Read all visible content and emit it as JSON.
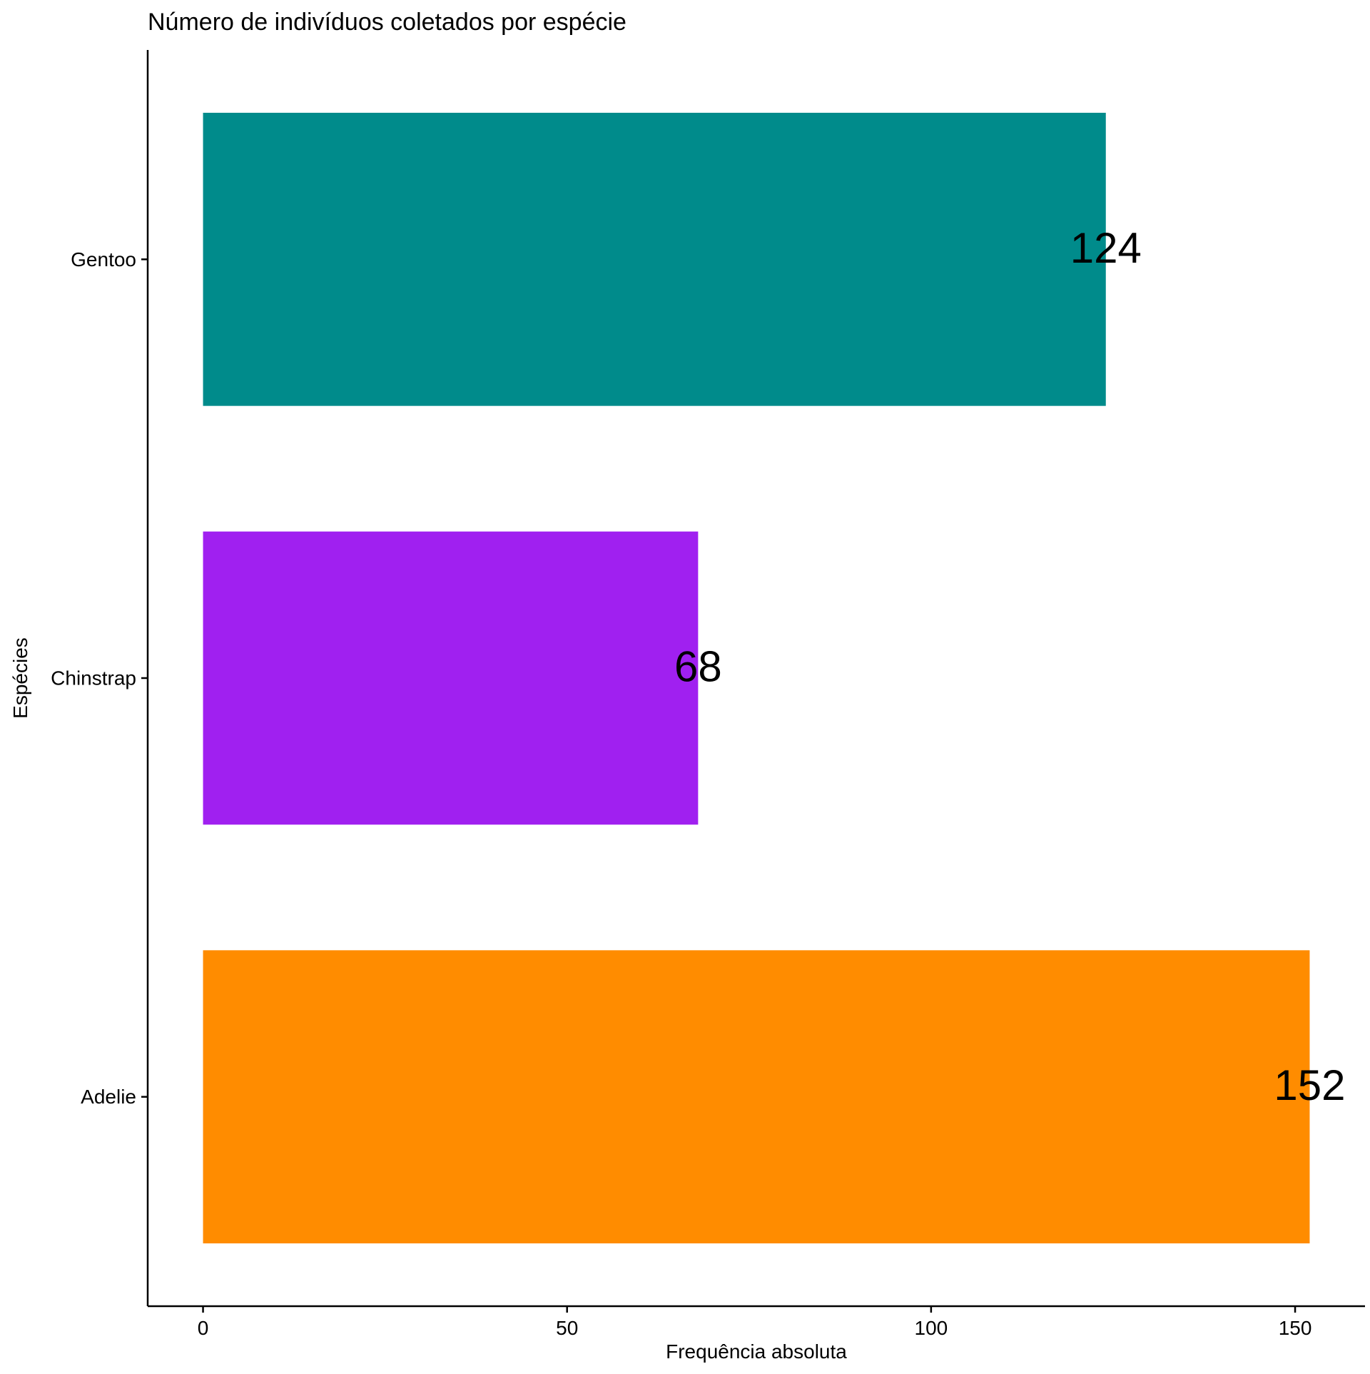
{
  "chart_data": {
    "type": "bar",
    "orientation": "horizontal",
    "title": "Número de indivíduos coletados por espécie",
    "xlabel": "Frequência absoluta",
    "ylabel": "Espécies",
    "categories": [
      "Adelie",
      "Chinstrap",
      "Gentoo"
    ],
    "values": [
      152,
      68,
      124
    ],
    "value_labels": [
      "152",
      "68",
      "124"
    ],
    "colors": [
      "#FF8C00",
      "#A020F0",
      "#008B8B"
    ],
    "x_ticks": [
      0,
      50,
      100,
      150
    ],
    "x_tick_labels": [
      "0",
      "50",
      "100",
      "150"
    ],
    "xlim": [
      -7.6,
      159.6
    ],
    "grid": false,
    "legend": "none"
  }
}
